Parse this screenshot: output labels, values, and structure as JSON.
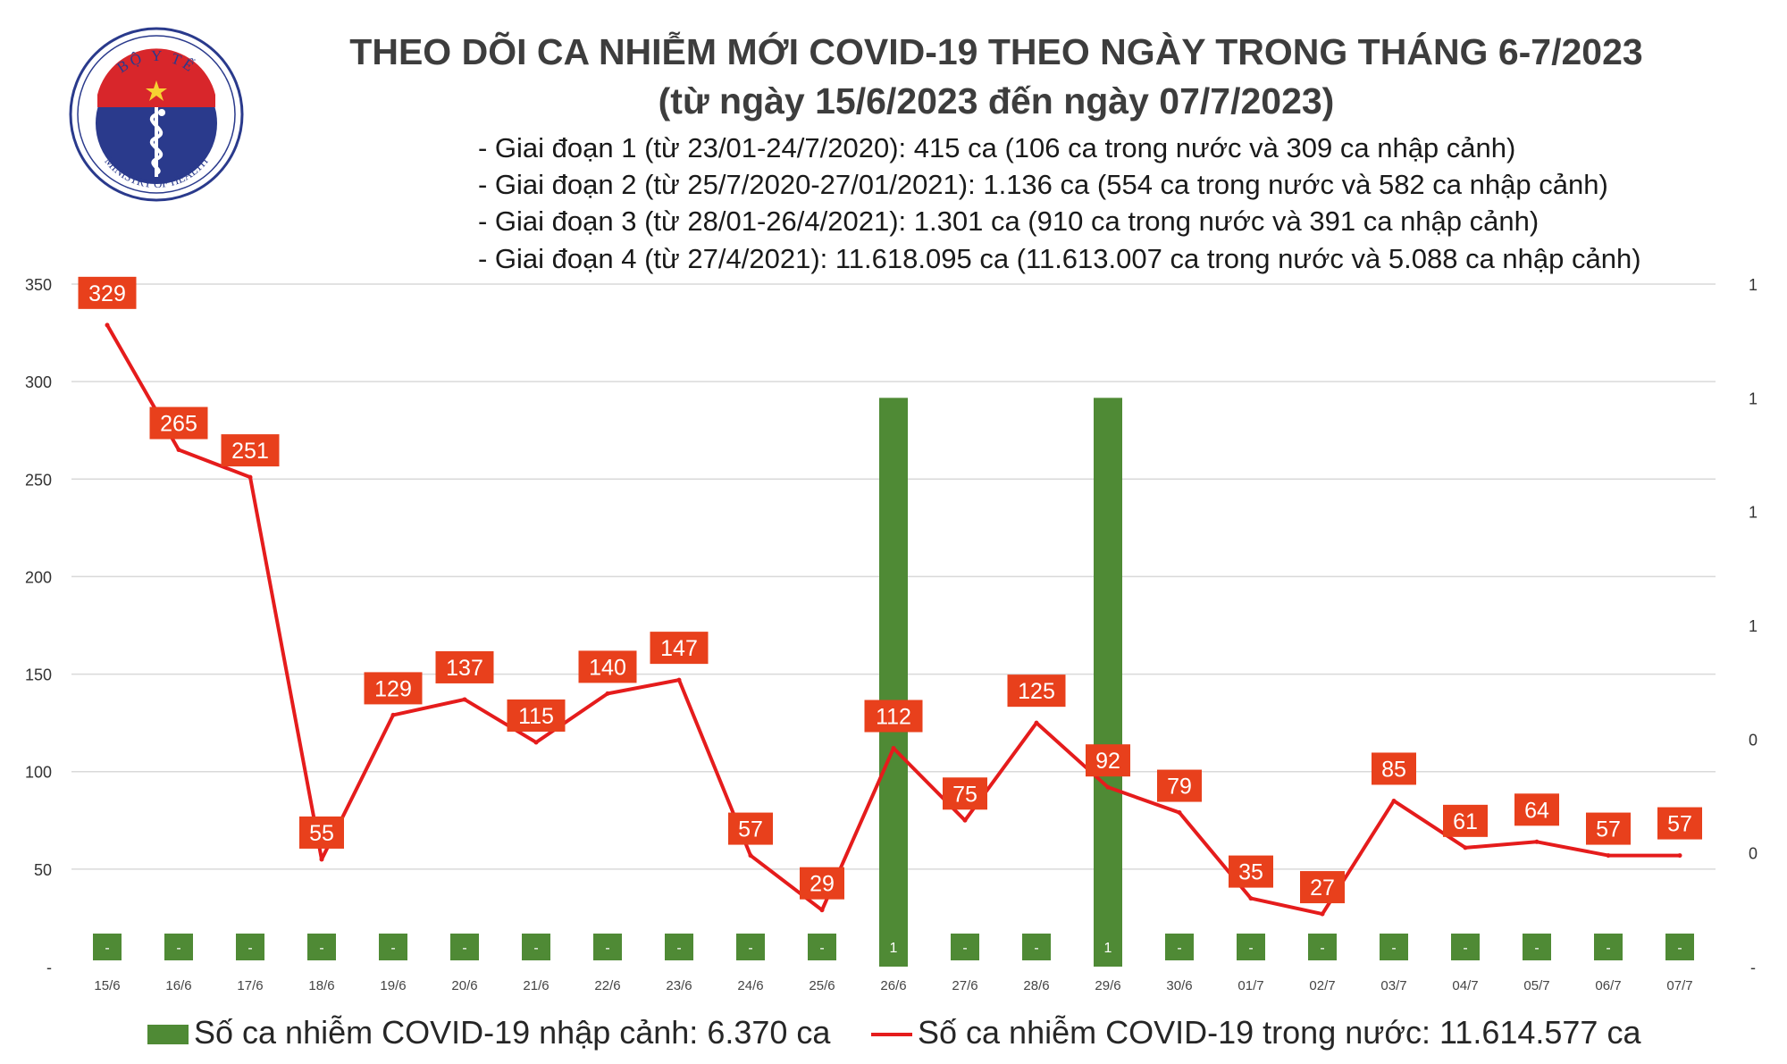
{
  "logo": {
    "text_top": "BỘ Y TẾ",
    "text_bottom": "MINISTRY OF HEALTH"
  },
  "header": {
    "title": "THEO DÕI CA NHIỄM MỚI COVID-19 THEO NGÀY TRONG THÁNG 6-7/2023",
    "subtitle": "(từ ngày 15/6/2023 đến ngày 07/7/2023)",
    "phases": [
      "- Giai đoạn 1 (từ 23/01-24/7/2020): 415 ca (106 ca trong nước và 309 ca nhập cảnh)",
      "- Giai đoạn 2 (từ 25/7/2020-27/01/2021): 1.136 ca (554 ca trong nước và 582 ca nhập cảnh)",
      "- Giai đoạn 3 (từ 28/01-26/4/2021): 1.301 ca (910 ca trong nước và 391 ca nhập cảnh)",
      "- Giai đoạn 4 (từ 27/4/2021): 11.618.095 ca (11.613.007 ca trong nước và 5.088 ca nhập cảnh)"
    ]
  },
  "legend": {
    "imported": "Số ca nhiễm COVID-19 nhập cảnh: 6.370 ca",
    "domestic": "Số ca nhiễm COVID-19 trong nước: 11.614.577 ca"
  },
  "colors": {
    "bar": "#4f8a35",
    "line": "#e51c1c",
    "label_box": "#e8401c",
    "grid": "#d9d9d9"
  },
  "chart_data": {
    "type": "bar+line",
    "categories": [
      "15/6",
      "16/6",
      "17/6",
      "18/6",
      "19/6",
      "20/6",
      "21/6",
      "22/6",
      "23/6",
      "24/6",
      "25/6",
      "26/6",
      "27/6",
      "28/6",
      "29/6",
      "30/6",
      "01/7",
      "02/7",
      "03/7",
      "04/7",
      "05/7",
      "06/7",
      "07/7"
    ],
    "series": [
      {
        "name": "Số ca nhiễm COVID-19 trong nước",
        "type": "line",
        "axis": "left",
        "values": [
          329,
          265,
          251,
          55,
          129,
          137,
          115,
          140,
          147,
          57,
          29,
          112,
          75,
          125,
          92,
          79,
          35,
          27,
          85,
          61,
          64,
          57,
          57
        ]
      },
      {
        "name": "Số ca nhiễm COVID-19 nhập cảnh",
        "type": "bar",
        "axis": "right",
        "values": [
          0,
          0,
          0,
          0,
          0,
          0,
          0,
          0,
          0,
          0,
          0,
          1,
          0,
          0,
          1,
          0,
          0,
          0,
          0,
          0,
          0,
          0,
          0
        ],
        "labels": [
          "-",
          "-",
          "-",
          "-",
          "-",
          "-",
          "-",
          "-",
          "-",
          "-",
          "-",
          "1",
          "-",
          "-",
          "1",
          "-",
          "-",
          "-",
          "-",
          "-",
          "-",
          "-",
          "-"
        ]
      }
    ],
    "y_left": {
      "min": 0,
      "max": 350,
      "ticks": [
        0,
        50,
        100,
        150,
        200,
        250,
        300,
        350
      ],
      "tick_labels": [
        "-",
        "50",
        "100",
        "150",
        "200",
        "250",
        "300",
        "350"
      ]
    },
    "y_right": {
      "min": 0,
      "max": 1.2,
      "tick_labels": [
        "-",
        "0",
        "0",
        "1",
        "1",
        "1",
        "1"
      ]
    },
    "grid": true,
    "legend_position": "bottom"
  }
}
